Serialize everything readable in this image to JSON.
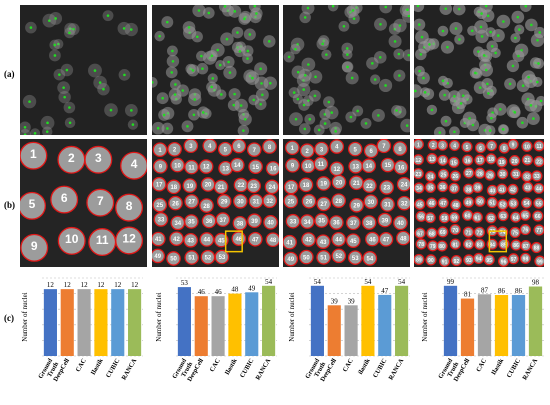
{
  "figure": {
    "row_labels": [
      "(a)",
      "(b)",
      "(c)"
    ],
    "columns": [
      {
        "a_density": 0.25,
        "b_numbers": [
          "1",
          "2",
          "3",
          "4",
          "5",
          "6",
          "7",
          "8",
          "9",
          "10",
          "11",
          "12"
        ],
        "b_highlight": false
      },
      {
        "a_density": 0.7,
        "b_numbers": [
          "1",
          "2",
          "3",
          "4",
          "5",
          "6",
          "7",
          "8",
          "9",
          "10",
          "11",
          "12",
          "13",
          "14",
          "15",
          "16",
          "17",
          "18",
          "19",
          "20",
          "21",
          "22",
          "23",
          "24",
          "25",
          "26",
          "27",
          "28",
          "29",
          "30",
          "31",
          "32",
          "33",
          "34",
          "35",
          "36",
          "37",
          "38",
          "39",
          "40",
          "41",
          "42",
          "43",
          "44",
          "45",
          "46",
          "47",
          "48",
          "49",
          "50",
          "51",
          "52",
          "53"
        ],
        "b_highlight": true
      },
      {
        "a_density": 0.6,
        "b_numbers": [
          "1",
          "2",
          "3",
          "4",
          "5",
          "6",
          "7",
          "8",
          "9",
          "10",
          "11",
          "12",
          "13",
          "14",
          "15",
          "16",
          "17",
          "18",
          "19",
          "20",
          "21",
          "22",
          "23",
          "24",
          "25",
          "26",
          "27",
          "28",
          "29",
          "30",
          "31",
          "32",
          "33",
          "34",
          "35",
          "36",
          "37",
          "38",
          "39",
          "40",
          "41",
          "42",
          "43",
          "44",
          "45",
          "46",
          "47",
          "48",
          "49",
          "50",
          "51",
          "52",
          "53",
          "54"
        ],
        "b_highlight": false
      },
      {
        "a_density": 0.9,
        "b_numbers": [
          "1",
          "2",
          "3",
          "4",
          "5",
          "6",
          "7",
          "8",
          "9",
          "10",
          "11",
          "12",
          "13",
          "14",
          "15",
          "16",
          "17",
          "18",
          "19",
          "20",
          "21",
          "22",
          "23",
          "24",
          "25",
          "26",
          "27",
          "28",
          "29",
          "30",
          "31",
          "32",
          "33",
          "34",
          "35",
          "36",
          "37",
          "38",
          "39",
          "40",
          "41",
          "42",
          "43",
          "44",
          "45",
          "46",
          "47",
          "48",
          "49",
          "50",
          "51",
          "52",
          "53",
          "54",
          "55",
          "56",
          "57",
          "58",
          "59",
          "60",
          "61",
          "62",
          "63",
          "64",
          "65",
          "66",
          "67",
          "68",
          "69",
          "70",
          "71",
          "72",
          "73",
          "74",
          "75",
          "76",
          "77",
          "78",
          "79",
          "80",
          "81",
          "82",
          "83",
          "84",
          "85",
          "86",
          "87",
          "88",
          "89",
          "90",
          "91",
          "92",
          "93",
          "94",
          "95",
          "96",
          "97",
          "98",
          "99"
        ],
        "b_highlight": true
      }
    ]
  },
  "chart_data": [
    {
      "type": "bar",
      "ylabel": "Number of nuclei",
      "categories": [
        "Ground Truth",
        "DeepCell",
        "CAC",
        "Ilastik",
        "CUBIC",
        "RANCA"
      ],
      "values": [
        12,
        12,
        12,
        12,
        12,
        12
      ],
      "ylim": [
        0,
        14
      ],
      "colors": [
        "#4472C4",
        "#ED7D31",
        "#A5A5A5",
        "#FFC000",
        "#5B9BD5",
        "#9BBB59"
      ],
      "grid": "dashed horizontal"
    },
    {
      "type": "bar",
      "ylabel": "Number of nuclei",
      "categories": [
        "Ground Truth",
        "DeepCell",
        "CAC",
        "Ilastik",
        "CUBIC",
        "RANCA"
      ],
      "values": [
        53,
        46,
        46,
        48,
        49,
        54
      ],
      "ylim": [
        0,
        60
      ],
      "colors": [
        "#4472C4",
        "#ED7D31",
        "#A5A5A5",
        "#FFC000",
        "#5B9BD5",
        "#9BBB59"
      ],
      "grid": "dashed horizontal"
    },
    {
      "type": "bar",
      "ylabel": "Number of nuclei",
      "categories": [
        "Ground Truth",
        "DeepCell",
        "CAC",
        "ilastik",
        "CUBIC",
        "RANCA"
      ],
      "values": [
        54,
        39,
        39,
        54,
        47,
        54
      ],
      "ylim": [
        0,
        60
      ],
      "colors": [
        "#4472C4",
        "#ED7D31",
        "#A5A5A5",
        "#FFC000",
        "#5B9BD5",
        "#9BBB59"
      ],
      "grid": "dashed horizontal"
    },
    {
      "type": "bar",
      "ylabel": "Number of nuclei",
      "categories": [
        "Ground Truth",
        "DeepCell",
        "CAC",
        "Ilastik",
        "CUBIC",
        "RANCA"
      ],
      "values": [
        99,
        81,
        87,
        86,
        86,
        98
      ],
      "ylim": [
        0,
        110
      ],
      "colors": [
        "#4472C4",
        "#ED7D31",
        "#A5A5A5",
        "#FFC000",
        "#5B9BD5",
        "#9BBB59"
      ],
      "grid": "dashed horizontal"
    }
  ]
}
